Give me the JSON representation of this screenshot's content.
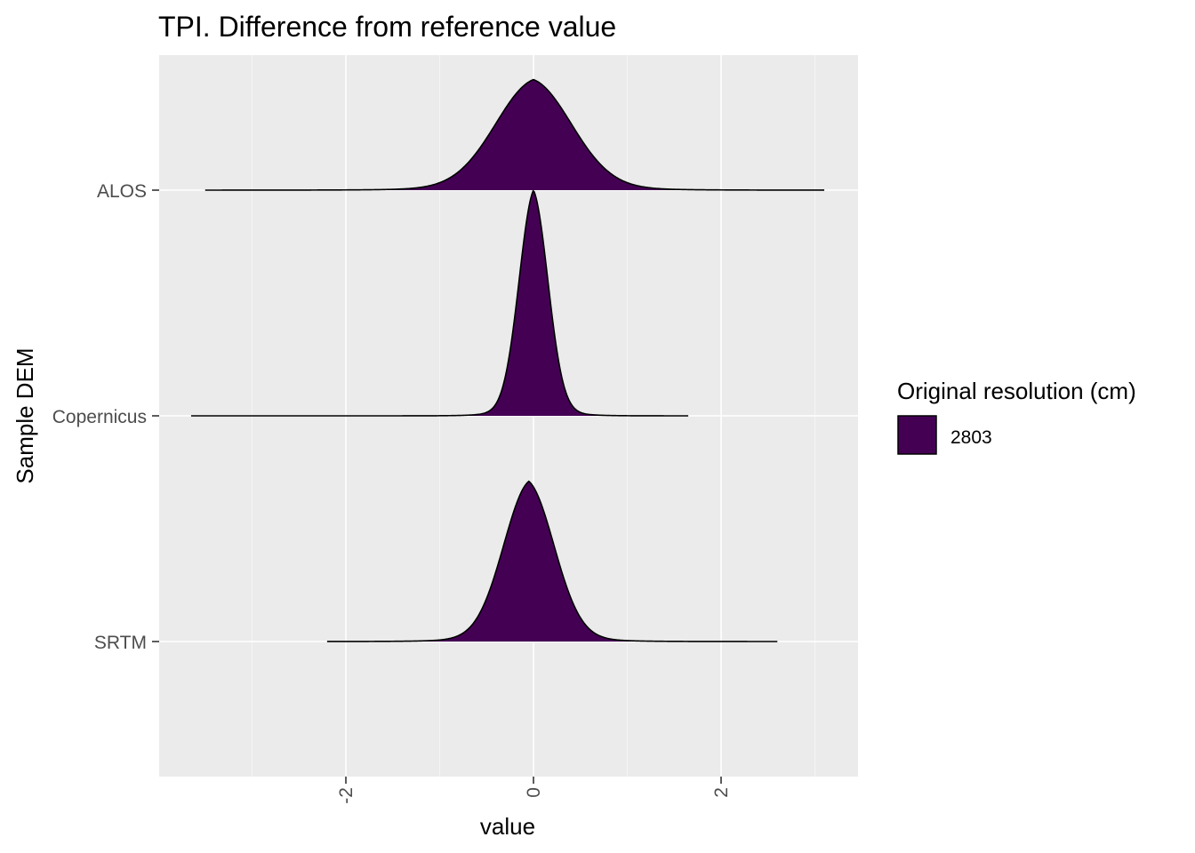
{
  "chart_data": {
    "type": "area",
    "subtype": "ridgeline-density",
    "title": "TPI. Difference from reference value",
    "xlabel": "value",
    "ylabel": "Sample DEM",
    "xlim": [
      -3.95,
      3.5
    ],
    "x_ticks": [
      -2,
      0,
      2
    ],
    "x_tick_labels": [
      "-2",
      "0",
      "2"
    ],
    "x_minor_ticks": [
      -3,
      -1,
      1,
      3
    ],
    "categories": [
      "ALOS",
      "Copernicus",
      "SRTM"
    ],
    "grid": true,
    "legend": {
      "title": "Original resolution (cm)",
      "position": "right",
      "entries": [
        {
          "label": "2803",
          "color": "#440154"
        }
      ]
    },
    "series": [
      {
        "category": "ALOS",
        "center": 0.0,
        "sd": 0.42,
        "peak_height": 0.49,
        "range": [
          -3.5,
          3.1
        ]
      },
      {
        "category": "Copernicus",
        "center": 0.0,
        "sd": 0.16,
        "peak_height": 1.0,
        "range": [
          -3.65,
          1.65
        ]
      },
      {
        "category": "SRTM",
        "center": -0.05,
        "sd": 0.28,
        "peak_height": 0.71,
        "range": [
          -2.2,
          2.6
        ]
      }
    ],
    "fill_color": "#440154",
    "outline_color": "#000000",
    "panel_background": "#ebebeb",
    "grid_color": "#ffffff"
  }
}
